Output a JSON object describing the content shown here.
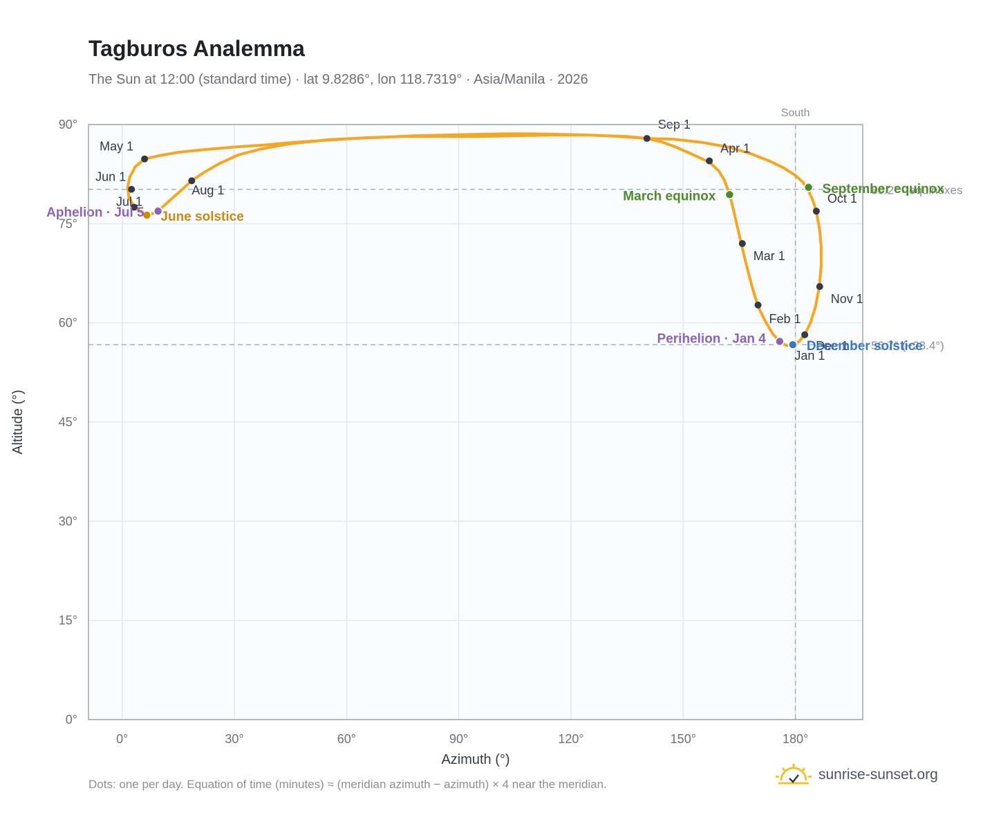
{
  "header": {
    "title": "Tagburos Analemma",
    "subtitle": "The Sun at 12:00 (standard time) · lat 9.8286°, lon 118.7319° · Asia/Manila · 2026"
  },
  "footer": {
    "note": "Dots: one per day. Equation of time (minutes) ≈ (meridian azimuth − azimuth) × 4 near the meridian.",
    "brand": "sunrise-sunset.org"
  },
  "chart_data": {
    "type": "scatter",
    "xlabel": "Azimuth (°)",
    "ylabel": "Altitude (°)",
    "xlim": [
      -9,
      198
    ],
    "ylim": [
      0,
      90
    ],
    "x_ticks": [
      "0°",
      "30°",
      "60°",
      "90°",
      "120°",
      "150°",
      "180°"
    ],
    "y_ticks": [
      "0°",
      "15°",
      "30°",
      "45°",
      "60°",
      "75°",
      "90°"
    ],
    "grid": true,
    "colors": {
      "path": "#f5a623",
      "month": "#333a45",
      "equinox": "#4c8c2b",
      "solstice_june": "#c98a12",
      "solstice_dec": "#3a78c3",
      "apsis": "#8b63b8",
      "ref_line": "#9fb3c4",
      "grid": "#e4e8ee",
      "frame": "#9aa5b1",
      "plot_bg": "#fafcfe"
    },
    "reference_lines": [
      {
        "axis": "x",
        "value": 180,
        "label": "South"
      },
      {
        "axis": "y",
        "value": 80.2,
        "label": "80.2° · equinoxes"
      },
      {
        "axis": "y",
        "value": 56.7,
        "label": "56.7° (−23.4°)"
      }
    ],
    "path_points": [
      [
        183.5,
        80.0
      ],
      [
        182.0,
        81.3
      ],
      [
        180.0,
        82.3
      ],
      [
        177.0,
        83.4
      ],
      [
        173.0,
        84.5
      ],
      [
        168.0,
        85.6
      ],
      [
        162.0,
        86.6
      ],
      [
        155.0,
        87.3
      ],
      [
        147.0,
        87.8
      ],
      [
        140.3,
        87.9
      ],
      [
        133.0,
        88.2
      ],
      [
        125.0,
        88.4
      ],
      [
        118.0,
        88.5
      ],
      [
        110.0,
        88.6
      ],
      [
        102.0,
        88.6
      ],
      [
        94.0,
        88.5
      ],
      [
        86.0,
        88.4
      ],
      [
        78.0,
        88.3
      ],
      [
        70.0,
        88.1
      ],
      [
        62.0,
        87.9
      ],
      [
        54.0,
        87.6
      ],
      [
        46.0,
        87.3
      ],
      [
        38.0,
        86.9
      ],
      [
        30.0,
        86.6
      ],
      [
        22.0,
        86.2
      ],
      [
        15.0,
        85.8
      ],
      [
        10.0,
        85.3
      ],
      [
        6.0,
        84.8
      ],
      [
        3.5,
        83.6
      ],
      [
        2.0,
        82.0
      ],
      [
        1.5,
        80.5
      ],
      [
        1.8,
        79.0
      ],
      [
        3.2,
        77.6
      ],
      [
        5.0,
        76.8
      ],
      [
        6.6,
        76.3
      ],
      [
        8.0,
        76.5
      ],
      [
        9.6,
        76.9
      ],
      [
        12.5,
        78.4
      ],
      [
        15.5,
        79.9
      ],
      [
        18.6,
        81.5
      ],
      [
        22.0,
        82.8
      ],
      [
        26.0,
        84.1
      ],
      [
        31.0,
        85.4
      ],
      [
        37.0,
        86.3
      ],
      [
        45.0,
        87.1
      ],
      [
        55.0,
        87.7
      ],
      [
        65.0,
        88.0
      ],
      [
        75.0,
        88.2
      ],
      [
        85.0,
        88.2
      ],
      [
        95.0,
        88.2
      ],
      [
        105.0,
        88.3
      ],
      [
        115.0,
        88.4
      ],
      [
        125.0,
        88.4
      ],
      [
        135.0,
        88.2
      ],
      [
        140.3,
        87.9
      ],
      [
        144.0,
        87.4
      ],
      [
        148.0,
        86.6
      ],
      [
        152.0,
        85.6
      ],
      [
        157.0,
        84.3
      ],
      [
        159.5,
        83.0
      ],
      [
        161.0,
        81.6
      ],
      [
        162.4,
        79.4
      ],
      [
        163.4,
        77.2
      ],
      [
        164.5,
        74.5
      ],
      [
        165.6,
        71.8
      ],
      [
        167.0,
        68.5
      ],
      [
        168.5,
        65.3
      ],
      [
        170.0,
        62.5
      ],
      [
        172.0,
        60.2
      ],
      [
        174.0,
        58.3
      ],
      [
        175.8,
        57.2
      ],
      [
        177.5,
        56.6
      ],
      [
        179.2,
        56.6
      ],
      [
        181.0,
        57.2
      ],
      [
        182.5,
        58.2
      ],
      [
        184.0,
        60.0
      ],
      [
        185.4,
        62.5
      ],
      [
        186.4,
        65.5
      ],
      [
        186.9,
        68.7
      ],
      [
        186.9,
        71.5
      ],
      [
        186.5,
        74.0
      ],
      [
        185.6,
        76.9
      ],
      [
        184.6,
        78.6
      ],
      [
        183.5,
        80.0
      ]
    ],
    "months": [
      {
        "label": "Jan 1",
        "az": 179.4,
        "alt": 56.7
      },
      {
        "label": "Feb 1",
        "az": 170.0,
        "alt": 62.7
      },
      {
        "label": "Mar 1",
        "az": 165.8,
        "alt": 72.0
      },
      {
        "label": "Apr 1",
        "az": 157.0,
        "alt": 84.5
      },
      {
        "label": "May 1",
        "az": 6.0,
        "alt": 84.8
      },
      {
        "label": "Jun 1",
        "az": 2.5,
        "alt": 80.2
      },
      {
        "label": "Jul 1",
        "az": 3.2,
        "alt": 77.5
      },
      {
        "label": "Aug 1",
        "az": 18.6,
        "alt": 81.5
      },
      {
        "label": "Sep 1",
        "az": 140.3,
        "alt": 87.9
      },
      {
        "label": "Oct 1",
        "az": 185.6,
        "alt": 76.9
      },
      {
        "label": "Nov 1",
        "az": 186.5,
        "alt": 65.5
      },
      {
        "label": "Dec 1",
        "az": 182.5,
        "alt": 58.2
      }
    ],
    "events": [
      {
        "label": "March equinox",
        "az": 162.4,
        "alt": 79.4,
        "kind": "equinox"
      },
      {
        "label": "September equinox",
        "az": 183.5,
        "alt": 80.5,
        "kind": "equinox"
      },
      {
        "label": "June solstice",
        "az": 6.6,
        "alt": 76.3,
        "kind": "solstice_june"
      },
      {
        "label": "December solstice",
        "az": 179.3,
        "alt": 56.7,
        "kind": "solstice_dec"
      },
      {
        "label": "Perihelion · Jan 4",
        "az": 175.8,
        "alt": 57.2,
        "kind": "apsis"
      },
      {
        "label": "Aphelion · Jul 5",
        "az": 9.6,
        "alt": 76.9,
        "kind": "apsis"
      }
    ]
  }
}
